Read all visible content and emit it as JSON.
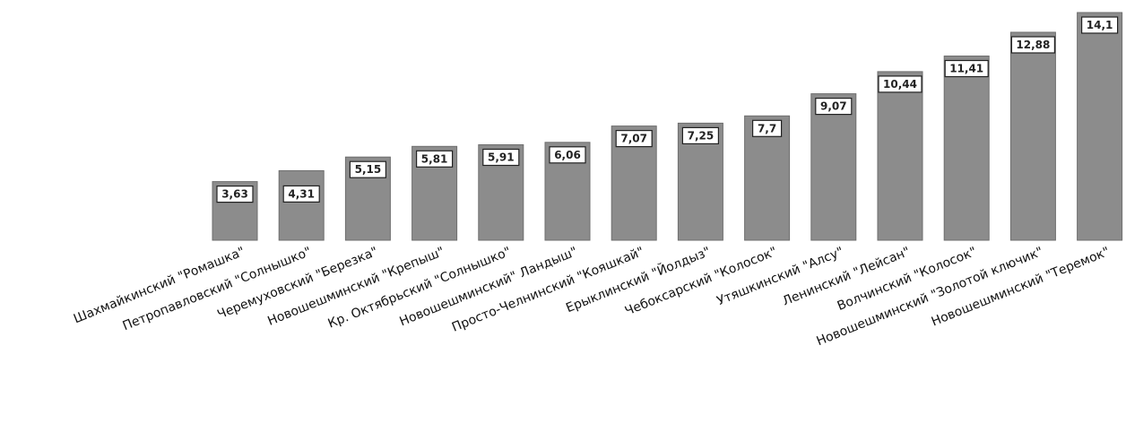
{
  "chart_data": {
    "type": "bar",
    "title": "",
    "xlabel": "",
    "ylabel": "",
    "categories": [
      "Шахмайкинский \"Ромашка\"",
      "Петропавловский \"Солнышко\"",
      "Черемуховский \"Березка\"",
      "Новошешминский \"Крепыш\"",
      "Кр. Октябрьский \"Солнышко\"",
      "Новошешминский\" Ландыш\"",
      "Просто-Челнинский \"Кояшкай\"",
      "Ерыклинский \"Йолдыз\"",
      "Чебоксарский \"Колосок\"",
      "Утяшкинский \"Алсу\"",
      "Ленинский \"Лейсан\"",
      "Волчинский \"Колосок\"",
      "Новошешминский \"Золотой ключик\"",
      "Новошешминский \"Теремок\""
    ],
    "values": [
      3.63,
      4.31,
      5.15,
      5.81,
      5.91,
      6.06,
      7.07,
      7.25,
      7.7,
      9.07,
      10.44,
      11.41,
      12.88,
      14.1
    ],
    "value_labels": [
      "3,63",
      "4,31",
      "5,15",
      "5,81",
      "5,91",
      "6,06",
      "7,07",
      "7,25",
      "7,7",
      "9,07",
      "10,44",
      "11,41",
      "12,88",
      "14,1"
    ],
    "ylim": [
      0,
      14.1
    ],
    "grid": false,
    "legend": "none",
    "colors": {
      "bar": "#8c8c8c",
      "bar_edge": "#6e6e6e"
    }
  }
}
